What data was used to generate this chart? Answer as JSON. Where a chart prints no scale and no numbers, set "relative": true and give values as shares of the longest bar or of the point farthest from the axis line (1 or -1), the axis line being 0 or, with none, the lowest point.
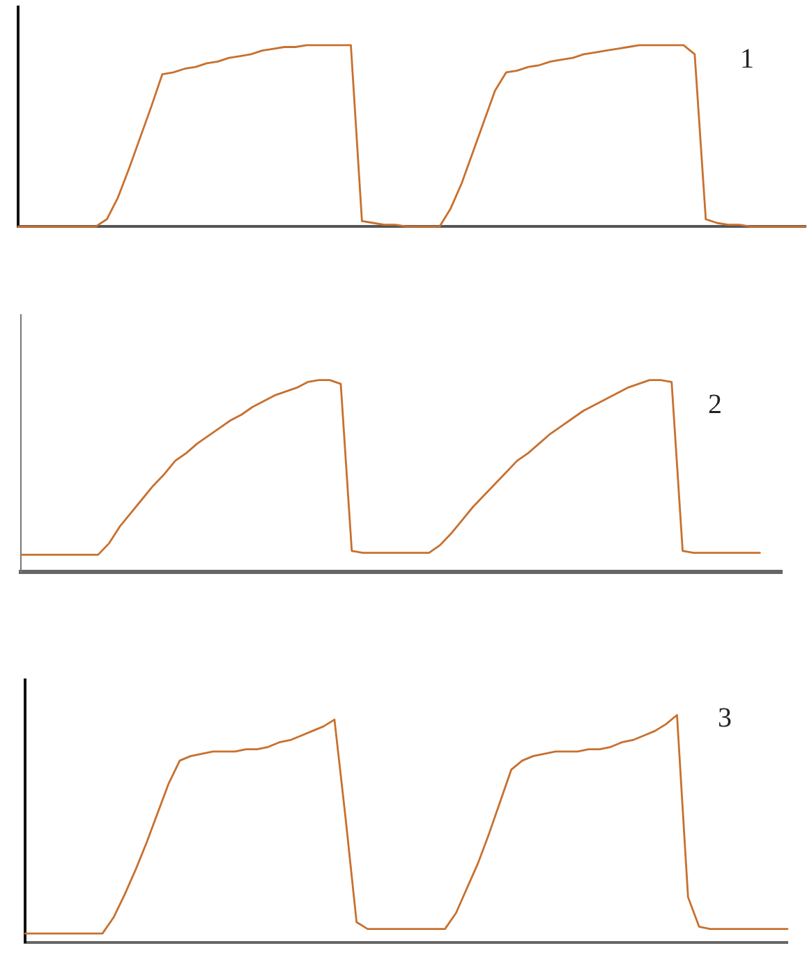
{
  "chart_data": [
    {
      "type": "line",
      "relative": true,
      "color": "#c8702e",
      "annotations": [
        "1"
      ],
      "categories": [
        null,
        null,
        null,
        null,
        null,
        null,
        null,
        null,
        null,
        null,
        null,
        null,
        null,
        null,
        null,
        null,
        null,
        null,
        null,
        null,
        null,
        null,
        null,
        null,
        null,
        null,
        null,
        null,
        null,
        null,
        null,
        null,
        null,
        null,
        null,
        null,
        null,
        null,
        null,
        null,
        null,
        null,
        null,
        null,
        null,
        null,
        null,
        null,
        null,
        null,
        null,
        null,
        null,
        null,
        null,
        null,
        null,
        null,
        null,
        null,
        null,
        null,
        null,
        null,
        null,
        null,
        null,
        null,
        null,
        null,
        null,
        null
      ],
      "values": [
        0,
        0,
        0,
        0,
        0,
        0,
        0,
        0,
        0.04,
        0.16,
        0.32,
        0.49,
        0.66,
        0.84,
        0.85,
        0.87,
        0.88,
        0.9,
        0.91,
        0.93,
        0.94,
        0.95,
        0.97,
        0.98,
        0.99,
        0.99,
        1,
        1,
        1,
        1,
        1,
        0.03,
        0.02,
        0.01,
        0.01,
        0,
        0,
        0,
        0,
        0.1,
        0.24,
        0.41,
        0.58,
        0.75,
        0.85,
        0.86,
        0.88,
        0.89,
        0.91,
        0.92,
        0.93,
        0.95,
        0.96,
        0.97,
        0.98,
        0.99,
        1,
        1,
        1,
        1,
        1,
        0.95,
        0.04,
        0.02,
        0.01,
        0.01,
        0,
        0,
        0,
        0,
        0,
        0
      ]
    },
    {
      "type": "line",
      "relative": true,
      "color": "#c8702e",
      "annotations": [
        "2"
      ],
      "categories": [
        null,
        null,
        null,
        null,
        null,
        null,
        null,
        null,
        null,
        null,
        null,
        null,
        null,
        null,
        null,
        null,
        null,
        null,
        null,
        null,
        null,
        null,
        null,
        null,
        null,
        null,
        null,
        null,
        null,
        null,
        null,
        null,
        null,
        null,
        null,
        null,
        null,
        null,
        null,
        null,
        null,
        null,
        null,
        null,
        null,
        null,
        null,
        null,
        null,
        null,
        null,
        null,
        null,
        null,
        null,
        null,
        null,
        null,
        null,
        null,
        null,
        null,
        null,
        null,
        null,
        null,
        null,
        null,
        null,
        null
      ],
      "values": [
        0.09,
        0.09,
        0.09,
        0.09,
        0.09,
        0.09,
        0.09,
        0.09,
        0.15,
        0.24,
        0.31,
        0.38,
        0.45,
        0.51,
        0.58,
        0.62,
        0.67,
        0.71,
        0.75,
        0.79,
        0.82,
        0.86,
        0.89,
        0.92,
        0.94,
        0.96,
        0.99,
        1,
        1,
        0.98,
        0.11,
        0.1,
        0.1,
        0.1,
        0.1,
        0.1,
        0.1,
        0.1,
        0.14,
        0.2,
        0.27,
        0.34,
        0.4,
        0.46,
        0.52,
        0.58,
        0.62,
        0.67,
        0.72,
        0.76,
        0.8,
        0.84,
        0.87,
        0.9,
        0.93,
        0.96,
        0.98,
        1,
        1,
        0.99,
        0.11,
        0.1,
        0.1,
        0.1,
        0.1,
        0.1,
        0.1,
        0.1,
        null,
        null
      ]
    },
    {
      "type": "line",
      "relative": true,
      "color": "#c8702e",
      "annotations": [
        "3"
      ],
      "categories": [
        null,
        null,
        null,
        null,
        null,
        null,
        null,
        null,
        null,
        null,
        null,
        null,
        null,
        null,
        null,
        null,
        null,
        null,
        null,
        null,
        null,
        null,
        null,
        null,
        null,
        null,
        null,
        null,
        null,
        null,
        null,
        null,
        null,
        null,
        null,
        null,
        null,
        null,
        null,
        null,
        null,
        null,
        null,
        null,
        null,
        null,
        null,
        null,
        null,
        null,
        null,
        null,
        null,
        null,
        null,
        null,
        null,
        null,
        null,
        null,
        null,
        null,
        null,
        null,
        null,
        null,
        null,
        null,
        null,
        null
      ],
      "values": [
        0.04,
        0.04,
        0.04,
        0.04,
        0.04,
        0.04,
        0.04,
        0.04,
        0.11,
        0.21,
        0.32,
        0.44,
        0.57,
        0.7,
        0.8,
        0.82,
        0.83,
        0.84,
        0.84,
        0.84,
        0.85,
        0.85,
        0.86,
        0.88,
        0.89,
        0.91,
        0.93,
        0.95,
        0.98,
        0.55,
        0.09,
        0.06,
        0.06,
        0.06,
        0.06,
        0.06,
        0.06,
        0.06,
        0.06,
        0.13,
        0.24,
        0.35,
        0.48,
        0.62,
        0.76,
        0.8,
        0.82,
        0.83,
        0.84,
        0.84,
        0.84,
        0.85,
        0.85,
        0.86,
        0.88,
        0.89,
        0.91,
        0.93,
        0.96,
        1,
        0.2,
        0.07,
        0.06,
        0.06,
        0.06,
        0.06,
        0.06,
        0.06,
        0.06,
        0.06
      ]
    }
  ]
}
